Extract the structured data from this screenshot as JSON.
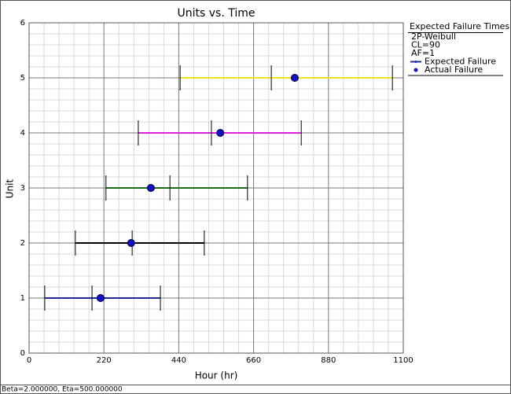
{
  "chart_data": {
    "type": "interval",
    "title": "Units vs. Time",
    "x_label": "Hour (hr)",
    "y_label": "Unit",
    "xlim": [
      0,
      1100
    ],
    "ylim": [
      0,
      6
    ],
    "xticks": [
      0,
      220,
      440,
      660,
      880,
      1100
    ],
    "yticks": [
      0,
      1,
      2,
      3,
      4,
      5,
      6
    ],
    "grid": true,
    "series": [
      {
        "unit": 1,
        "color": "#1f2a9c",
        "lower": 46,
        "expected": 185,
        "upper": 386,
        "actual": 210
      },
      {
        "unit": 2,
        "color": "#000000",
        "lower": 136,
        "expected": 303,
        "upper": 515,
        "actual": 300
      },
      {
        "unit": 3,
        "color": "#1a6b1a",
        "lower": 226,
        "expected": 414,
        "upper": 642,
        "actual": 358
      },
      {
        "unit": 4,
        "color": "#e020e0",
        "lower": 321,
        "expected": 536,
        "upper": 800,
        "actual": 562
      },
      {
        "unit": 5,
        "color": "#f0e020",
        "lower": 444,
        "expected": 712,
        "upper": 1068,
        "actual": 781
      }
    ],
    "legend": {
      "title": "Expected Failure Times",
      "lines": [
        "2P-Weibull",
        "CL=90",
        "AF=1"
      ],
      "items": [
        {
          "name": "Expected Failure",
          "color": "#1f2a9c"
        },
        {
          "name": "Actual Failure",
          "color": "#1010c8"
        }
      ]
    },
    "footer": "Beta=2.000000, Eta=500.000000"
  }
}
